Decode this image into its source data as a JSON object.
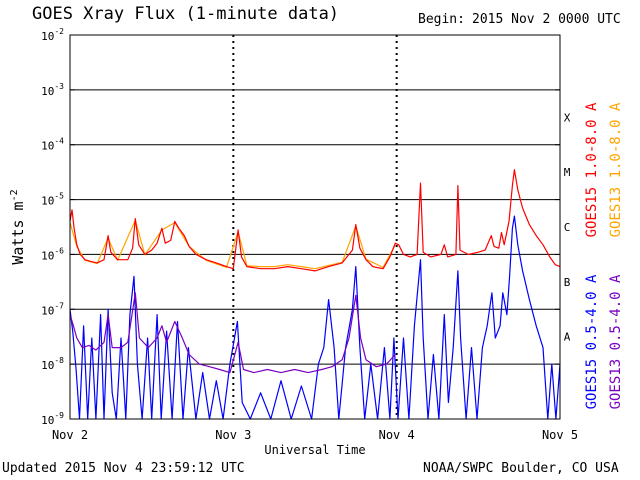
{
  "header": {
    "title": "GOES Xray Flux (1-minute data)",
    "begin_label": "Begin:",
    "begin_value": "2015 Nov 2 0000 UTC"
  },
  "footer": {
    "updated": "Updated 2015 Nov  4 23:59:12 UTC",
    "credit": "NOAA/SWPC Boulder, CO USA"
  },
  "colors": {
    "goes15_long": "#ff0000",
    "goes13_long": "#ffa500",
    "goes15_short": "#0000ff",
    "goes13_short": "#7a00c0",
    "grid": "#000000"
  },
  "chart_data": {
    "type": "line",
    "title": "GOES Xray Flux (1-minute data)",
    "xlabel": "Universal Time",
    "ylabel": "Watts m",
    "ylabel_exponent": "-2",
    "yscale": "log",
    "ylim": [
      1e-09,
      0.01
    ],
    "xlim": [
      0,
      72
    ],
    "x_unit": "hours since 2015 Nov 2 0000 UTC",
    "x_ticks": [
      {
        "x": 0,
        "label": "Nov 2"
      },
      {
        "x": 24,
        "label": "Nov 3"
      },
      {
        "x": 48,
        "label": "Nov 4"
      },
      {
        "x": 72,
        "label": "Nov 5"
      }
    ],
    "y_ticks": [
      {
        "exp": -9,
        "base": "10",
        "sup": "-9"
      },
      {
        "exp": -8,
        "base": "10",
        "sup": "-8"
      },
      {
        "exp": -7,
        "base": "10",
        "sup": "-7"
      },
      {
        "exp": -6,
        "base": "10",
        "sup": "-6"
      },
      {
        "exp": -5,
        "base": "10",
        "sup": "-5"
      },
      {
        "exp": -4,
        "base": "10",
        "sup": "-4"
      },
      {
        "exp": -3,
        "base": "10",
        "sup": "-3"
      },
      {
        "exp": -2,
        "base": "10",
        "sup": "-2"
      }
    ],
    "flare_classes": [
      {
        "label": "A",
        "exp": -8
      },
      {
        "label": "B",
        "exp": -7
      },
      {
        "label": "C",
        "exp": -6
      },
      {
        "label": "M",
        "exp": -5
      },
      {
        "label": "X",
        "exp": -4
      }
    ],
    "legend_position": "right",
    "series": [
      {
        "name": "GOES15 1.0-8.0 A",
        "color": "#ff0000",
        "points": [
          [
            0,
            4e-06
          ],
          [
            0.3,
            6.5e-06
          ],
          [
            0.6,
            3e-06
          ],
          [
            1.0,
            1.5e-06
          ],
          [
            1.5,
            1e-06
          ],
          [
            2.2,
            8e-07
          ],
          [
            3.0,
            7.5e-07
          ],
          [
            4.0,
            7e-07
          ],
          [
            5.0,
            8e-07
          ],
          [
            5.6,
            2.2e-06
          ],
          [
            6.0,
            1.1e-06
          ],
          [
            7.0,
            8e-07
          ],
          [
            8.5,
            8e-07
          ],
          [
            9.2,
            1.3e-06
          ],
          [
            9.6,
            4.5e-06
          ],
          [
            10.1,
            1.5e-06
          ],
          [
            11.0,
            1e-06
          ],
          [
            12.0,
            1.2e-06
          ],
          [
            12.8,
            1.6e-06
          ],
          [
            13.5,
            3e-06
          ],
          [
            14.0,
            1.6e-06
          ],
          [
            14.8,
            1.8e-06
          ],
          [
            15.4,
            4e-06
          ],
          [
            16.0,
            3e-06
          ],
          [
            16.8,
            2.2e-06
          ],
          [
            17.5,
            1.4e-06
          ],
          [
            18.5,
            1e-06
          ],
          [
            20.0,
            8e-07
          ],
          [
            21.5,
            7e-07
          ],
          [
            23.0,
            6e-07
          ],
          [
            24.0,
            5.5e-07
          ],
          [
            24.7,
            2.8e-06
          ],
          [
            25.2,
            9e-07
          ],
          [
            26.0,
            6e-07
          ],
          [
            28.0,
            5.5e-07
          ],
          [
            30.0,
            5.5e-07
          ],
          [
            32.0,
            6e-07
          ],
          [
            34.0,
            5.5e-07
          ],
          [
            36.0,
            5e-07
          ],
          [
            38.0,
            6e-07
          ],
          [
            40.0,
            7e-07
          ],
          [
            41.5,
            1.2e-06
          ],
          [
            42.0,
            3.5e-06
          ],
          [
            42.6,
            1.3e-06
          ],
          [
            43.5,
            8e-07
          ],
          [
            44.5,
            6e-07
          ],
          [
            46.0,
            5.5e-07
          ],
          [
            47.0,
            9e-07
          ],
          [
            47.8,
            1.6e-06
          ],
          [
            48.3,
            1.5e-06
          ],
          [
            49.0,
            1e-06
          ],
          [
            50.0,
            9e-07
          ],
          [
            51.0,
            1e-06
          ],
          [
            51.5,
            2e-05
          ],
          [
            51.9,
            1.1e-06
          ],
          [
            53.0,
            9e-07
          ],
          [
            54.5,
            1e-06
          ],
          [
            55.0,
            1.5e-06
          ],
          [
            55.5,
            9e-07
          ],
          [
            56.7,
            1e-06
          ],
          [
            57.0,
            1.8e-05
          ],
          [
            57.3,
            1.2e-06
          ],
          [
            58.5,
            1e-06
          ],
          [
            60.0,
            1.1e-06
          ],
          [
            61.0,
            1.2e-06
          ],
          [
            61.9,
            2.2e-06
          ],
          [
            62.3,
            1.4e-06
          ],
          [
            63.0,
            1.3e-06
          ],
          [
            63.4,
            2.5e-06
          ],
          [
            63.8,
            1.5e-06
          ],
          [
            64.5,
            4e-06
          ],
          [
            65.0,
            1.8e-05
          ],
          [
            65.3,
            3.5e-05
          ],
          [
            65.8,
            1.5e-05
          ],
          [
            66.5,
            7e-06
          ],
          [
            67.5,
            3.5e-06
          ],
          [
            68.5,
            2.2e-06
          ],
          [
            69.5,
            1.5e-06
          ],
          [
            70.5,
            9e-07
          ],
          [
            71.3,
            6.5e-07
          ],
          [
            72.0,
            6e-07
          ]
        ]
      },
      {
        "name": "GOES13 1.0-8.0 A",
        "color": "#ffa500",
        "points": [
          [
            0,
            3.8e-06
          ],
          [
            1.0,
            1.4e-06
          ],
          [
            2.2,
            7.8e-07
          ],
          [
            4.0,
            6.8e-07
          ],
          [
            5.6,
            2e-06
          ],
          [
            7.0,
            7.8e-07
          ],
          [
            9.6,
            4.2e-06
          ],
          [
            11.0,
            9.8e-07
          ],
          [
            13.5,
            2.8e-06
          ],
          [
            15.4,
            3.8e-06
          ],
          [
            17.5,
            1.4e-06
          ],
          [
            20.0,
            7.8e-07
          ],
          [
            23.0,
            5.8e-07
          ],
          [
            24.7,
            2.6e-06
          ],
          [
            26.0,
            6.2e-07
          ],
          [
            28.0,
            6e-07
          ],
          [
            30.0,
            6e-07
          ],
          [
            32.0,
            6.5e-07
          ],
          [
            34.0,
            6e-07
          ],
          [
            36.0,
            5.5e-07
          ],
          [
            38.0,
            6.3e-07
          ],
          [
            40.0,
            7.2e-07
          ],
          [
            42.0,
            3.3e-06
          ],
          [
            43.5,
            8.2e-07
          ],
          [
            46.0,
            5.8e-07
          ],
          [
            47.8,
            1.5e-06
          ]
        ]
      },
      {
        "name": "GOES15 0.5-4.0 A",
        "color": "#0000ff",
        "points": [
          [
            0,
            1e-07
          ],
          [
            0.4,
            4e-08
          ],
          [
            0.9,
            8e-09
          ],
          [
            1.4,
            1e-09
          ],
          [
            2.0,
            5e-08
          ],
          [
            2.6,
            1e-09
          ],
          [
            3.2,
            3e-08
          ],
          [
            3.8,
            1e-09
          ],
          [
            4.5,
            8e-08
          ],
          [
            5.0,
            1e-09
          ],
          [
            5.6,
            1e-07
          ],
          [
            6.2,
            3e-09
          ],
          [
            6.8,
            1e-09
          ],
          [
            7.5,
            3e-08
          ],
          [
            8.2,
            1e-09
          ],
          [
            8.8,
            8e-08
          ],
          [
            9.4,
            4e-07
          ],
          [
            9.9,
            1e-08
          ],
          [
            10.6,
            1e-09
          ],
          [
            11.4,
            3e-08
          ],
          [
            12.0,
            1e-09
          ],
          [
            12.8,
            8e-08
          ],
          [
            13.4,
            1e-09
          ],
          [
            14.2,
            4e-08
          ],
          [
            15.0,
            1e-09
          ],
          [
            15.8,
            6e-08
          ],
          [
            16.6,
            1e-09
          ],
          [
            17.4,
            2e-08
          ],
          [
            18.5,
            1e-09
          ],
          [
            19.5,
            7e-09
          ],
          [
            20.5,
            1e-09
          ],
          [
            21.5,
            5e-09
          ],
          [
            22.5,
            1e-09
          ],
          [
            23.5,
            1e-08
          ],
          [
            24.6,
            6e-08
          ],
          [
            25.3,
            2e-09
          ],
          [
            26.5,
            1e-09
          ],
          [
            28.0,
            3e-09
          ],
          [
            29.5,
            1e-09
          ],
          [
            31.0,
            5e-09
          ],
          [
            32.5,
            1e-09
          ],
          [
            34.0,
            4e-09
          ],
          [
            35.5,
            1e-09
          ],
          [
            36.5,
            1e-08
          ],
          [
            37.3,
            2e-08
          ],
          [
            38.0,
            1.5e-07
          ],
          [
            38.8,
            2e-08
          ],
          [
            39.5,
            1e-09
          ],
          [
            40.5,
            2e-08
          ],
          [
            41.5,
            1e-07
          ],
          [
            42.0,
            6e-07
          ],
          [
            42.6,
            2e-08
          ],
          [
            43.3,
            1e-09
          ],
          [
            44.2,
            1e-08
          ],
          [
            45.2,
            1e-09
          ],
          [
            46.2,
            2e-08
          ],
          [
            47.0,
            1e-09
          ],
          [
            47.6,
            3e-08
          ],
          [
            48.2,
            1e-09
          ],
          [
            49.0,
            3e-08
          ],
          [
            49.8,
            1e-09
          ],
          [
            50.6,
            5e-08
          ],
          [
            51.5,
            8e-07
          ],
          [
            51.9,
            3e-08
          ],
          [
            52.6,
            1e-09
          ],
          [
            53.4,
            1.5e-08
          ],
          [
            54.2,
            1e-09
          ],
          [
            55.0,
            8e-08
          ],
          [
            55.6,
            2e-09
          ],
          [
            56.3,
            2e-08
          ],
          [
            57.0,
            5e-07
          ],
          [
            57.4,
            3e-08
          ],
          [
            58.2,
            1e-09
          ],
          [
            59.0,
            2e-08
          ],
          [
            59.8,
            1e-09
          ],
          [
            60.6,
            2e-08
          ],
          [
            61.3,
            5e-08
          ],
          [
            62.0,
            2e-07
          ],
          [
            62.5,
            3e-08
          ],
          [
            63.2,
            5e-08
          ],
          [
            63.6,
            2e-07
          ],
          [
            64.2,
            8e-08
          ],
          [
            64.6,
            4e-07
          ],
          [
            65.0,
            3e-06
          ],
          [
            65.3,
            5e-06
          ],
          [
            65.8,
            1.5e-06
          ],
          [
            66.5,
            5e-07
          ],
          [
            67.5,
            1.5e-07
          ],
          [
            68.5,
            5e-08
          ],
          [
            69.5,
            2e-08
          ],
          [
            70.2,
            1e-09
          ],
          [
            70.8,
            1e-08
          ],
          [
            71.4,
            1e-09
          ],
          [
            72.0,
            1e-08
          ]
        ]
      },
      {
        "name": "GOES13 0.5-4.0 A",
        "color": "#7a00c0",
        "points": [
          [
            0,
            8e-08
          ],
          [
            0.5,
            5e-08
          ],
          [
            1.0,
            3e-08
          ],
          [
            1.8,
            2e-08
          ],
          [
            2.8,
            2.2e-08
          ],
          [
            3.8,
            1.8e-08
          ],
          [
            5.0,
            2.5e-08
          ],
          [
            5.6,
            8e-08
          ],
          [
            6.2,
            2e-08
          ],
          [
            7.5,
            2e-08
          ],
          [
            8.5,
            2.5e-08
          ],
          [
            9.6,
            2e-07
          ],
          [
            10.2,
            3e-08
          ],
          [
            11.5,
            2e-08
          ],
          [
            12.8,
            3e-08
          ],
          [
            13.5,
            5e-08
          ],
          [
            14.2,
            2.5e-08
          ],
          [
            15.4,
            6e-08
          ],
          [
            16.5,
            3e-08
          ],
          [
            17.5,
            1.5e-08
          ],
          [
            19.0,
            1e-08
          ],
          [
            20.5,
            9e-09
          ],
          [
            22.0,
            8e-09
          ],
          [
            23.5,
            7e-09
          ],
          [
            24.7,
            2.5e-08
          ],
          [
            25.5,
            8e-09
          ],
          [
            27.0,
            7e-09
          ],
          [
            29.0,
            8e-09
          ],
          [
            31.0,
            7e-09
          ],
          [
            33.0,
            8e-09
          ],
          [
            35.0,
            7e-09
          ],
          [
            37.0,
            8e-09
          ],
          [
            38.5,
            9e-09
          ],
          [
            40.0,
            1.2e-08
          ],
          [
            41.0,
            3e-08
          ],
          [
            42.0,
            1.8e-07
          ],
          [
            42.7,
            3e-08
          ],
          [
            43.5,
            1.2e-08
          ],
          [
            45.0,
            9e-09
          ],
          [
            46.5,
            1e-08
          ],
          [
            47.8,
            1.5e-08
          ]
        ]
      }
    ]
  }
}
